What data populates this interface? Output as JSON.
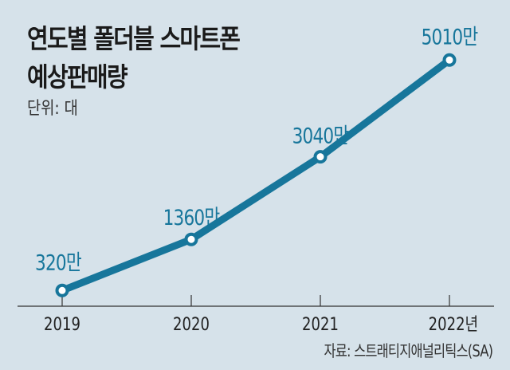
{
  "chart_data": {
    "type": "line",
    "title": "연도별 폴더블 스마트폰 예상판매량",
    "title_lines": [
      "연도별 폴더블 스마트폰",
      "예상판매량"
    ],
    "unit": "단위: 대",
    "source": "자료: 스트래티지애널리틱스(SA)",
    "categories": [
      "2019",
      "2020",
      "2021",
      "2022년"
    ],
    "values": [
      320,
      1360,
      3040,
      5010
    ],
    "data_labels": [
      "320만",
      "1360만",
      "3040만",
      "5010만"
    ],
    "value_unit": "만 대",
    "ylim": [
      0,
      5010
    ],
    "grid": false,
    "legend": "none",
    "colors": {
      "line": "#17769b",
      "label": "#17769b",
      "background": "#d6e2ea",
      "axis": "#333333"
    }
  }
}
